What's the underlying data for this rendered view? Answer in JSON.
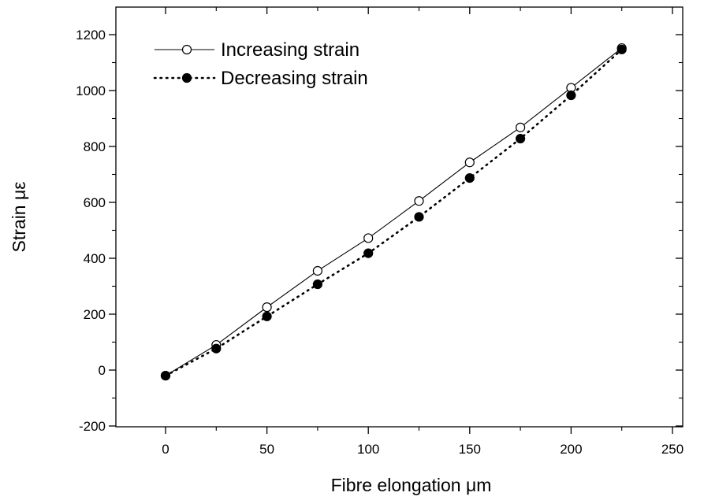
{
  "chart_data": {
    "type": "line",
    "xlabel": "Fibre elongation μm",
    "ylabel": "Strain με",
    "xlim": [
      -30,
      250
    ],
    "ylim": [
      -200,
      1300
    ],
    "xticks": [
      0,
      50,
      100,
      150,
      200,
      250
    ],
    "yticks": [
      -200,
      0,
      200,
      400,
      600,
      800,
      1000,
      1200
    ],
    "grid": false,
    "legend_position": "top-left",
    "series": [
      {
        "name": "Increasing strain",
        "style": "solid line, open circles",
        "x": [
          0,
          25,
          50,
          75,
          100,
          125,
          150,
          175,
          200,
          225
        ],
        "y": [
          -20,
          90,
          225,
          355,
          472,
          605,
          743,
          868,
          1010,
          1152
        ]
      },
      {
        "name": "Decreasing strain",
        "style": "dotted line, filled circles",
        "x": [
          0,
          25,
          50,
          75,
          100,
          125,
          150,
          175,
          200,
          225
        ],
        "y": [
          -20,
          77,
          192,
          307,
          418,
          548,
          687,
          828,
          983,
          1147
        ]
      }
    ]
  }
}
